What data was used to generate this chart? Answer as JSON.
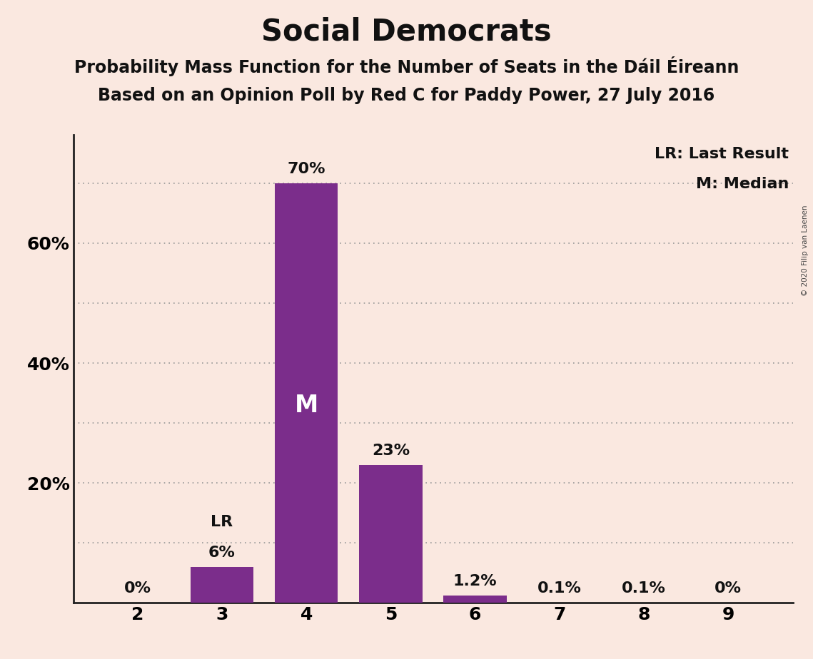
{
  "title": "Social Democrats",
  "subtitle1": "Probability Mass Function for the Number of Seats in the Dáil Éireann",
  "subtitle2": "Based on an Opinion Poll by Red C for Paddy Power, 27 July 2016",
  "copyright": "© 2020 Filip van Laenen",
  "categories": [
    2,
    3,
    4,
    5,
    6,
    7,
    8,
    9
  ],
  "values": [
    0.0,
    6.0,
    70.0,
    23.0,
    1.2,
    0.1,
    0.1,
    0.0
  ],
  "bar_labels": [
    "0%",
    "6%",
    "70%",
    "23%",
    "1.2%",
    "0.1%",
    "0.1%",
    "0%"
  ],
  "bar_color": "#7B2D8B",
  "background_color": "#FAE8E0",
  "ylim": [
    0,
    78
  ],
  "yticks": [
    10,
    20,
    30,
    40,
    50,
    60,
    70
  ],
  "ytick_labels": [
    "",
    "20%",
    "",
    "40%",
    "",
    "60%",
    ""
  ],
  "grid_color": "#999999",
  "median_bar": 4,
  "lr_bar": 3,
  "legend_lr": "LR: Last Result",
  "legend_m": "M: Median",
  "title_fontsize": 30,
  "subtitle_fontsize": 17,
  "label_fontsize": 16,
  "tick_fontsize": 18
}
